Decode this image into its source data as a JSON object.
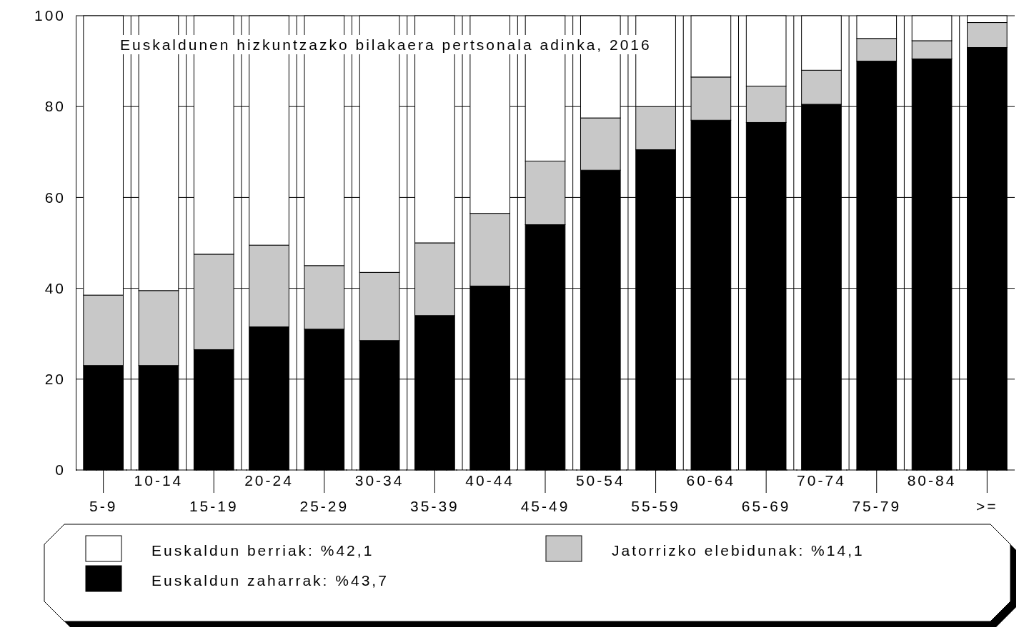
{
  "chart_data": {
    "type": "bar",
    "stacked": true,
    "title": "Euskaldunen hizkuntzazko bilakaera pertsonala adinka, 2016",
    "categories": [
      "5-9",
      "10-14",
      "15-19",
      "20-24",
      "25-29",
      "30-34",
      "35-39",
      "40-44",
      "45-49",
      "50-54",
      "55-59",
      "60-64",
      "65-69",
      "70-74",
      "75-79",
      "80-84",
      ">="
    ],
    "series": [
      {
        "name": "Euskaldun zaharrak: %43,7",
        "color": "#000000",
        "values": [
          23,
          23,
          26.5,
          31.5,
          31,
          28.5,
          34,
          40.5,
          54,
          66,
          70.5,
          77,
          76.5,
          80.5,
          90,
          90.5,
          93
        ]
      },
      {
        "name": "Jatorrizko elebidunak: %14,1",
        "color": "#c8c8c8",
        "values": [
          15.5,
          16.5,
          21,
          18,
          14,
          15,
          16,
          16,
          14,
          11.5,
          9.5,
          9.5,
          8,
          7.5,
          5,
          4,
          5.5
        ]
      },
      {
        "name": "Euskaldun berriak: %42,1",
        "color": "#ffffff",
        "values": [
          61.5,
          60.5,
          52.5,
          50.5,
          55,
          56.5,
          50,
          43.5,
          32,
          22.5,
          20,
          13.5,
          15.5,
          12,
          5,
          5.5,
          1.5
        ]
      }
    ],
    "ylim": [
      0,
      100
    ],
    "yticks": [
      0,
      20,
      40,
      60,
      80,
      100
    ],
    "grid": true,
    "legend": "bottom"
  }
}
